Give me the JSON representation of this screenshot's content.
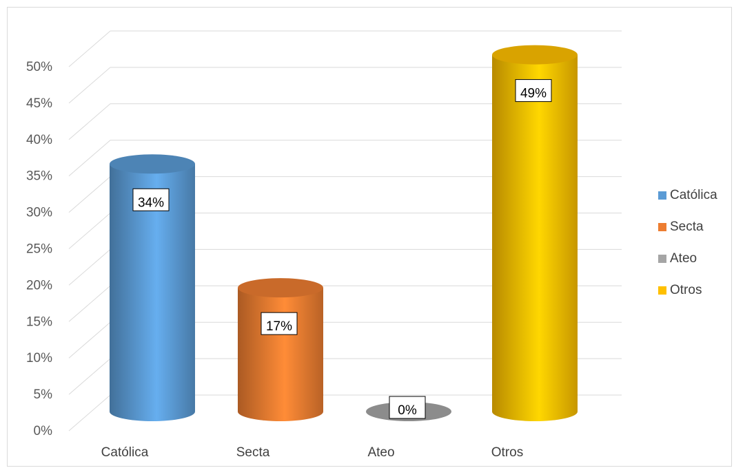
{
  "chart_data": {
    "type": "bar",
    "style": "3d-cylinder",
    "categories": [
      "Católica",
      "Secta",
      "Ateo",
      "Otros"
    ],
    "values": [
      34,
      17,
      0,
      49
    ],
    "data_labels": [
      "34%",
      "17%",
      "0%",
      "49%"
    ],
    "colors": [
      "#5b9bd5",
      "#ed7d31",
      "#a5a5a5",
      "#ffc000"
    ],
    "ylim": [
      0,
      50
    ],
    "y_ticks": [
      "0%",
      "5%",
      "10%",
      "15%",
      "20%",
      "25%",
      "30%",
      "35%",
      "40%",
      "45%",
      "50%"
    ],
    "grid": true,
    "legend": {
      "position": "right",
      "entries": [
        "Católica",
        "Secta",
        "Ateo",
        "Otros"
      ]
    }
  }
}
